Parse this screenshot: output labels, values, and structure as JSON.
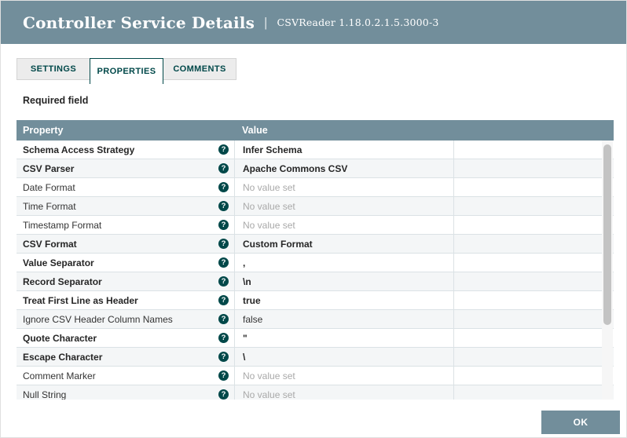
{
  "header": {
    "title": "Controller Service Details",
    "separator": "|",
    "subtitle": "CSVReader 1.18.0.2.1.5.3000-3"
  },
  "tabs": [
    {
      "label": "SETTINGS",
      "active": false
    },
    {
      "label": "PROPERTIES",
      "active": true
    },
    {
      "label": "COMMENTS",
      "active": false
    }
  ],
  "required_field_label": "Required field",
  "table": {
    "columns": {
      "property": "Property",
      "value": "Value"
    },
    "help_icon": "?",
    "rows": [
      {
        "property": "Schema Access Strategy",
        "value": "Infer Schema",
        "required": true,
        "unset": false
      },
      {
        "property": "CSV Parser",
        "value": "Apache Commons CSV",
        "required": true,
        "unset": false
      },
      {
        "property": "Date Format",
        "value": "No value set",
        "required": false,
        "unset": true
      },
      {
        "property": "Time Format",
        "value": "No value set",
        "required": false,
        "unset": true
      },
      {
        "property": "Timestamp Format",
        "value": "No value set",
        "required": false,
        "unset": true
      },
      {
        "property": "CSV Format",
        "value": "Custom Format",
        "required": true,
        "unset": false
      },
      {
        "property": "Value Separator",
        "value": ",",
        "required": true,
        "unset": false
      },
      {
        "property": "Record Separator",
        "value": "\\n",
        "required": true,
        "unset": false
      },
      {
        "property": "Treat First Line as Header",
        "value": "true",
        "required": true,
        "unset": false
      },
      {
        "property": "Ignore CSV Header Column Names",
        "value": "false",
        "required": false,
        "unset": false
      },
      {
        "property": "Quote Character",
        "value": "\"",
        "required": true,
        "unset": false
      },
      {
        "property": "Escape Character",
        "value": "\\",
        "required": true,
        "unset": false
      },
      {
        "property": "Comment Marker",
        "value": "No value set",
        "required": false,
        "unset": true
      },
      {
        "property": "Null String",
        "value": "No value set",
        "required": false,
        "unset": true
      }
    ]
  },
  "footer": {
    "ok_label": "OK"
  },
  "colors": {
    "accent": "#728e9b",
    "dark_teal": "#004849",
    "row_alt": "#f4f6f7",
    "row_border": "#dbe2e5",
    "unset_text": "#a9a9a9"
  }
}
